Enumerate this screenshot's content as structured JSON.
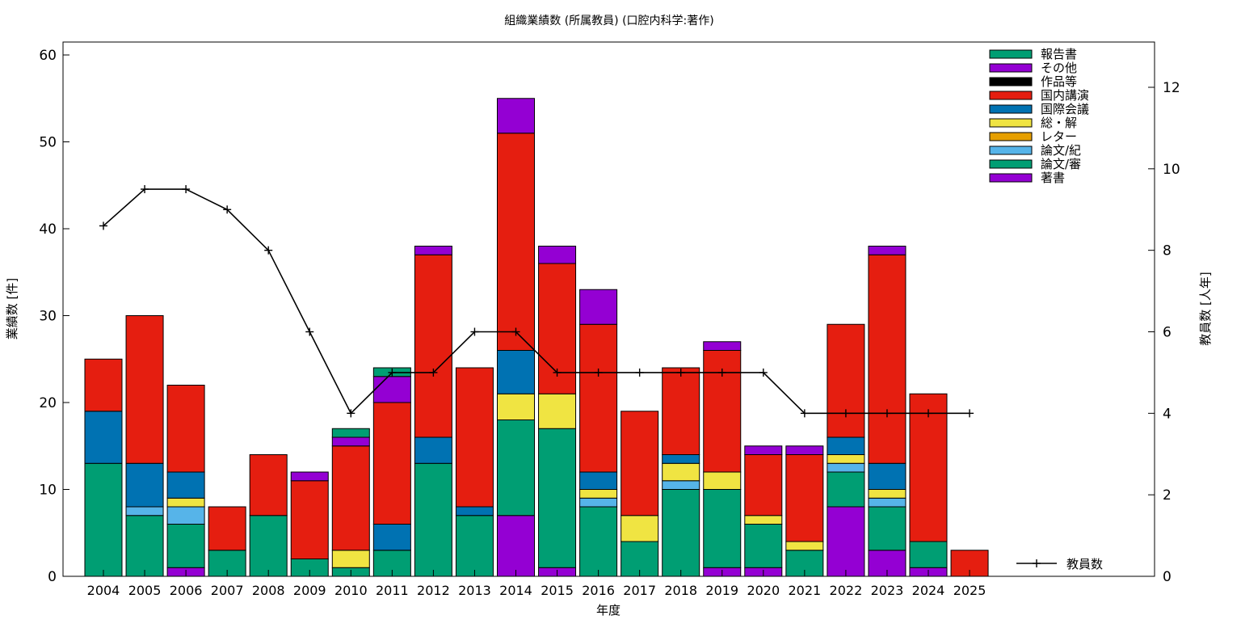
{
  "chart_data": {
    "type": "bar",
    "title": "組織業績数 (所属教員) (口腔内科学:著作)",
    "xlabel": "年度",
    "ylabel": "業績数 [件]",
    "y2label": "教員数 [人年]",
    "ylim": [
      0,
      60
    ],
    "y2lim": [
      0,
      13
    ],
    "yticks": [
      0,
      10,
      20,
      30,
      40,
      50,
      60
    ],
    "y2ticks": [
      0,
      2,
      4,
      6,
      8,
      10,
      12
    ],
    "grid": false,
    "legend_position": "top-right",
    "categories": [
      "2004",
      "2005",
      "2006",
      "2007",
      "2008",
      "2009",
      "2010",
      "2011",
      "2012",
      "2013",
      "2014",
      "2015",
      "2016",
      "2017",
      "2018",
      "2019",
      "2020",
      "2021",
      "2022",
      "2023",
      "2024",
      "2025"
    ],
    "stack_order_bottom_to_top": [
      "著書",
      "論文/審",
      "論文/紀",
      "レター",
      "総・解",
      "国際会議",
      "国内講演",
      "作品等",
      "その他",
      "報告書"
    ],
    "series": [
      {
        "name": "報告書",
        "color": "#009e73",
        "values": [
          0,
          0,
          0,
          0,
          0,
          0,
          1,
          1,
          0,
          0,
          0,
          0,
          0,
          0,
          0,
          0,
          0,
          0,
          0,
          0,
          0,
          0
        ]
      },
      {
        "name": "その他",
        "color": "#9400d3",
        "values": [
          0,
          0,
          0,
          0,
          0,
          1,
          1,
          3,
          1,
          0,
          4,
          2,
          4,
          0,
          0,
          1,
          1,
          1,
          0,
          1,
          0,
          0
        ]
      },
      {
        "name": "作品等",
        "color": "#000000",
        "values": [
          0,
          0,
          0,
          0,
          0,
          0,
          0,
          0,
          0,
          0,
          0,
          0,
          0,
          0,
          0,
          0,
          0,
          0,
          0,
          0,
          0,
          0
        ]
      },
      {
        "name": "国内講演",
        "color": "#e51e10",
        "values": [
          6,
          17,
          10,
          5,
          7,
          9,
          12,
          14,
          21,
          16,
          25,
          15,
          17,
          12,
          10,
          14,
          7,
          10,
          13,
          24,
          17,
          3
        ]
      },
      {
        "name": "国際会議",
        "color": "#0072b2",
        "values": [
          6,
          5,
          3,
          0,
          0,
          0,
          0,
          3,
          3,
          1,
          5,
          0,
          2,
          0,
          1,
          0,
          0,
          0,
          2,
          3,
          0,
          0
        ]
      },
      {
        "name": "総・解",
        "color": "#f0e442",
        "values": [
          0,
          0,
          1,
          0,
          0,
          0,
          2,
          0,
          0,
          0,
          3,
          4,
          1,
          3,
          2,
          2,
          1,
          1,
          1,
          1,
          0,
          0
        ]
      },
      {
        "name": "レター",
        "color": "#e69f00",
        "values": [
          0,
          0,
          0,
          0,
          0,
          0,
          0,
          0,
          0,
          0,
          0,
          0,
          0,
          0,
          0,
          0,
          0,
          0,
          0,
          0,
          0,
          0
        ]
      },
      {
        "name": "論文/紀",
        "color": "#56b4e9",
        "values": [
          0,
          1,
          2,
          0,
          0,
          0,
          0,
          0,
          0,
          0,
          0,
          0,
          1,
          0,
          1,
          0,
          0,
          0,
          1,
          1,
          0,
          0
        ]
      },
      {
        "name": "論文/審",
        "color": "#009e73",
        "values": [
          13,
          7,
          5,
          3,
          7,
          2,
          1,
          3,
          13,
          7,
          11,
          16,
          8,
          4,
          10,
          9,
          5,
          3,
          4,
          5,
          3,
          0
        ]
      },
      {
        "name": "著書",
        "color": "#9400d3",
        "values": [
          0,
          0,
          1,
          0,
          0,
          0,
          0,
          0,
          0,
          0,
          7,
          1,
          0,
          0,
          0,
          1,
          1,
          0,
          8,
          3,
          1,
          0
        ]
      }
    ],
    "line_series": {
      "name": "教員数",
      "axis": "y2",
      "color": "#000000",
      "values": [
        8.6,
        9.5,
        9.5,
        9,
        8,
        6,
        4,
        5,
        5,
        6,
        6,
        5,
        5,
        5,
        5,
        5,
        5,
        4,
        4,
        4,
        4,
        4
      ]
    }
  }
}
